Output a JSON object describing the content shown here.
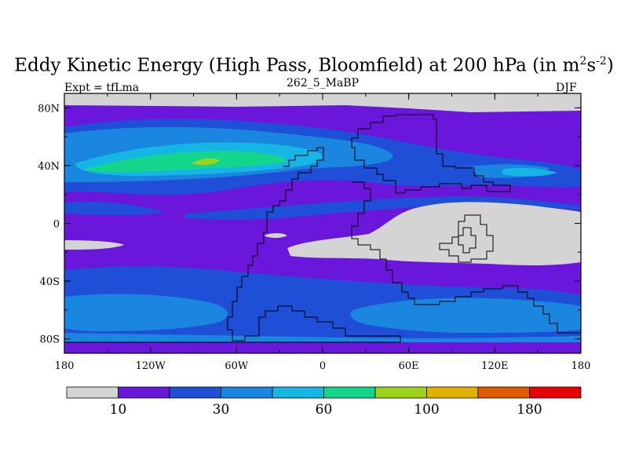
{
  "chart_data": {
    "type": "heatmap",
    "title_main": "Eddy Kinetic Energy (High Pass, Bloomfield) at 200 hPa (in m",
    "title_sup1": "2",
    "title_mid": "s",
    "title_sup2": "-2",
    "title_end": ")",
    "subtitle_left": "Expt = tfLma",
    "subtitle_center": "262_5_MaBP",
    "subtitle_right": "DJF",
    "x_ticks": [
      "180",
      "120W",
      "60W",
      "0",
      "60E",
      "120E",
      "180"
    ],
    "y_ticks": [
      "80N",
      "40N",
      "0",
      "40S",
      "80S"
    ],
    "xlim": [
      -180,
      180
    ],
    "ylim": [
      -90,
      90
    ],
    "colorbar": {
      "colors": [
        "#d4d4d4",
        "#6a17db",
        "#1f4fd6",
        "#1b86e0",
        "#16b6e4",
        "#13d68c",
        "#9ed21a",
        "#e2b100",
        "#e05a00",
        "#e80000"
      ],
      "labels": [
        {
          "boundary": 1,
          "text": "10"
        },
        {
          "boundary": 3,
          "text": "30"
        },
        {
          "boundary": 5,
          "text": "60"
        },
        {
          "boundary": 7,
          "text": "100"
        },
        {
          "boundary": 9,
          "text": "180"
        }
      ]
    },
    "field_bands": [
      {
        "level": 0,
        "lat_range": [
          75,
          90
        ]
      },
      {
        "level": 1,
        "lat_range": [
          -80,
          75
        ]
      },
      {
        "level": 2,
        "lat_range": [
          20,
          65
        ]
      },
      {
        "level": 3,
        "lat_range": [
          28,
          58
        ]
      },
      {
        "level": 4,
        "lat_range": [
          34,
          52
        ]
      },
      {
        "level": 5,
        "lat_range": [
          40,
          48
        ]
      },
      {
        "level": 6,
        "lat_range": [
          43,
          45
        ]
      },
      {
        "level": 2,
        "lat_range": [
          -90,
          -25
        ]
      },
      {
        "level": 3,
        "lat_range": [
          -80,
          -58
        ]
      },
      {
        "level": 0,
        "lat_range": [
          -20,
          10
        ],
        "lon_range": [
          50,
          180
        ]
      }
    ]
  }
}
